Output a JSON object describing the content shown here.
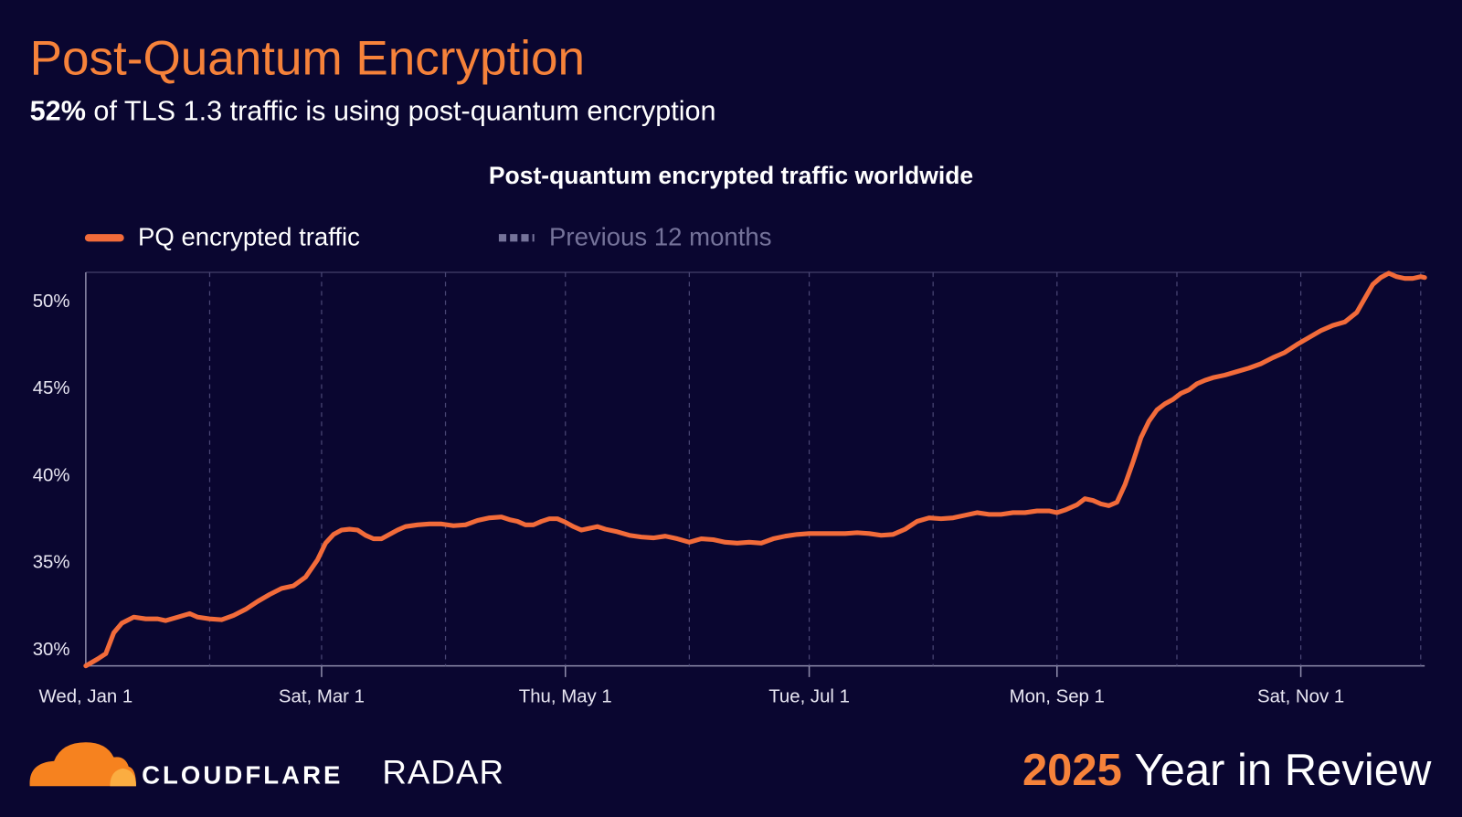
{
  "header": {
    "title": "Post-Quantum Encryption",
    "highlight": "52%",
    "subtitle": "of TLS 1.3 traffic is using post-quantum encryption"
  },
  "footer": {
    "brand": "CLOUDFLARE",
    "product": "RADAR",
    "year": "2025",
    "tagline": "Year in Review"
  },
  "chart_data": {
    "type": "line",
    "title": "Post-quantum encrypted traffic worldwide",
    "x": [
      0,
      3,
      5,
      7,
      9,
      12,
      15,
      18,
      20,
      23,
      26,
      28,
      31,
      34,
      37,
      40,
      43,
      46,
      49,
      52,
      55,
      58,
      60,
      62,
      64,
      66,
      68,
      70,
      72,
      74,
      76,
      78,
      80,
      83,
      86,
      89,
      92,
      95,
      98,
      101,
      104,
      106,
      108,
      110,
      112,
      114,
      116,
      118,
      120,
      122,
      124,
      126,
      128,
      130,
      133,
      136,
      139,
      142,
      145,
      148,
      151,
      154,
      157,
      160,
      163,
      166,
      169,
      172,
      175,
      178,
      181,
      184,
      187,
      190,
      193,
      196,
      199,
      202,
      205,
      208,
      211,
      214,
      217,
      220,
      223,
      226,
      229,
      232,
      235,
      238,
      241,
      243,
      245,
      248,
      250,
      252,
      254,
      256,
      258,
      260,
      262,
      264,
      266,
      268,
      270,
      272,
      274,
      276,
      278,
      280,
      282,
      285,
      288,
      291,
      294,
      297,
      300,
      303,
      306,
      309,
      312,
      315,
      318,
      320,
      322,
      324,
      326,
      328,
      330,
      332,
      334,
      335
    ],
    "series": [
      {
        "name": "PQ encrypted traffic",
        "color": "#f26b3a",
        "values": [
          29.1,
          29.5,
          29.8,
          31.0,
          31.55,
          31.9,
          31.8,
          31.8,
          31.7,
          31.9,
          32.1,
          31.9,
          31.8,
          31.75,
          32.0,
          32.35,
          32.8,
          33.2,
          33.55,
          33.7,
          34.2,
          35.2,
          36.15,
          36.65,
          36.9,
          36.95,
          36.9,
          36.6,
          36.4,
          36.4,
          36.65,
          36.9,
          37.1,
          37.2,
          37.25,
          37.25,
          37.15,
          37.2,
          37.45,
          37.6,
          37.65,
          37.5,
          37.4,
          37.2,
          37.2,
          37.4,
          37.55,
          37.55,
          37.35,
          37.1,
          36.9,
          37.0,
          37.1,
          36.95,
          36.8,
          36.6,
          36.5,
          36.45,
          36.55,
          36.4,
          36.2,
          36.4,
          36.35,
          36.2,
          36.15,
          36.2,
          36.15,
          36.4,
          36.55,
          36.65,
          36.7,
          36.7,
          36.7,
          36.7,
          36.75,
          36.7,
          36.6,
          36.65,
          36.95,
          37.4,
          37.6,
          37.55,
          37.6,
          37.75,
          37.9,
          37.8,
          37.8,
          37.9,
          37.9,
          38.0,
          38.0,
          37.9,
          38.05,
          38.35,
          38.7,
          38.6,
          38.4,
          38.3,
          38.5,
          39.5,
          40.8,
          42.2,
          43.15,
          43.8,
          44.15,
          44.4,
          44.75,
          44.95,
          45.3,
          45.5,
          45.65,
          45.8,
          46.0,
          46.2,
          46.45,
          46.8,
          47.1,
          47.55,
          47.95,
          48.35,
          48.65,
          48.85,
          49.4,
          50.2,
          51.0,
          51.4,
          51.65,
          51.45,
          51.35,
          51.35,
          51.45,
          51.4
        ]
      }
    ],
    "inactive_series": [
      {
        "name": "Previous 12 months",
        "color": "#75739a"
      }
    ],
    "xlim": [
      0,
      335
    ],
    "xticks": [
      {
        "value": 0,
        "label": "Wed, Jan 1"
      },
      {
        "value": 31,
        "label": null
      },
      {
        "value": 59,
        "label": "Sat, Mar 1"
      },
      {
        "value": 90,
        "label": null
      },
      {
        "value": 120,
        "label": "Thu, May 1"
      },
      {
        "value": 151,
        "label": null
      },
      {
        "value": 181,
        "label": "Tue, Jul 1"
      },
      {
        "value": 212,
        "label": null
      },
      {
        "value": 243,
        "label": "Mon, Sep 1"
      },
      {
        "value": 273,
        "label": null
      },
      {
        "value": 304,
        "label": "Sat, Nov 1"
      },
      {
        "value": 334,
        "label": null
      }
    ],
    "ylim": [
      29.1,
      51.7
    ],
    "yticks": [
      {
        "value": 30,
        "label": "30%"
      },
      {
        "value": 35,
        "label": "35%"
      },
      {
        "value": 40,
        "label": "40%"
      },
      {
        "value": 45,
        "label": "45%"
      },
      {
        "value": 50,
        "label": "50%"
      }
    ],
    "grid": true
  }
}
